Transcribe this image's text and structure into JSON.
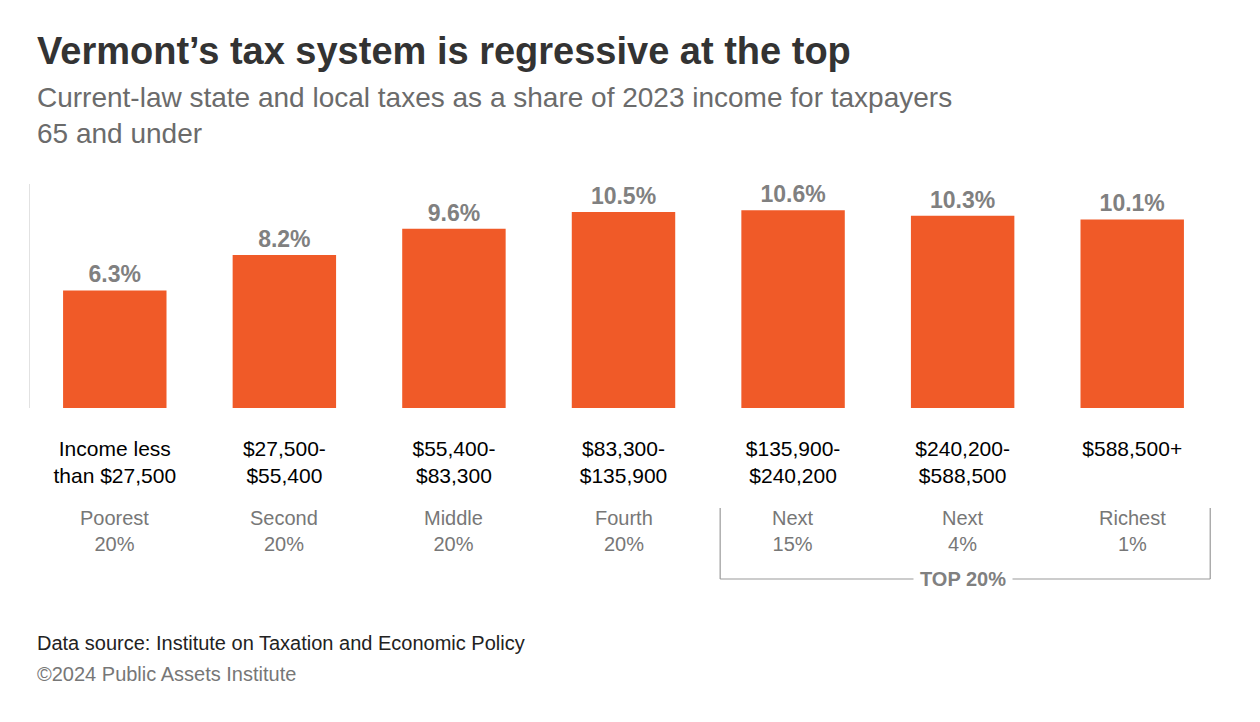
{
  "chart_data": {
    "type": "bar",
    "title": "Vermont’s tax system is regressive at the top",
    "subtitle": "Current-law state and local taxes as a share of 2023 income for taxpayers 65 and under",
    "categories": [
      "Income less than $27,500",
      "$27,500-$55,400",
      "$55,400-$83,300",
      "$83,300-$135,900",
      "$135,900-$240,200",
      "$240,200-$588,500",
      "$588,500+"
    ],
    "groups": [
      "Poorest 20%",
      "Second 20%",
      "Middle 20%",
      "Fourth 20%",
      "Next 15%",
      "Next 4%",
      "Richest 1%"
    ],
    "bracket": {
      "label": "TOP 20%",
      "categories": [
        "$135,900-$240,200",
        "$240,200-$588,500",
        "$588,500+"
      ]
    },
    "values": [
      6.3,
      8.2,
      9.6,
      10.5,
      10.6,
      10.3,
      10.1
    ],
    "value_labels": [
      "6.3%",
      "8.2%",
      "9.6%",
      "10.5%",
      "10.6%",
      "10.3%",
      "10.1%"
    ],
    "color": "#f05a28",
    "ylim": [
      0,
      12
    ],
    "grid": false,
    "data_labels": true,
    "tick_labels": "x",
    "source": "Data source: Institute on Taxation and Economic Policy",
    "credit": "©2024 Public Assets Institute"
  }
}
